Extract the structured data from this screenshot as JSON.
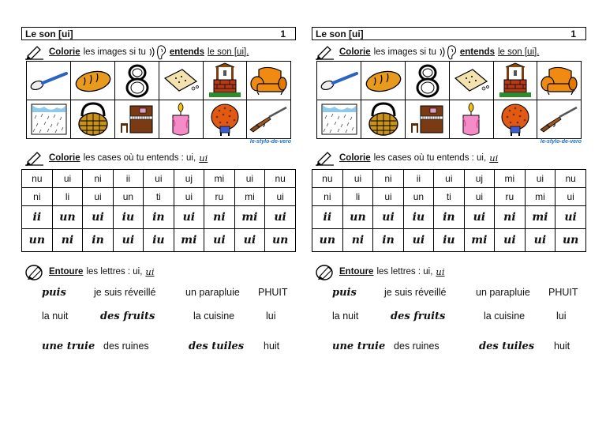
{
  "sheet": {
    "title": "Le son [ui]",
    "page_number": "1",
    "instruction1": {
      "verb": "Colorie",
      "mid": "les images si tu",
      "verb2": "entends",
      "end": "le son [ui]."
    },
    "pictures": [
      {
        "name": "spoon-icon",
        "label": "cuillère"
      },
      {
        "name": "bread-icon",
        "label": "pain"
      },
      {
        "name": "eight-icon",
        "label": "huit"
      },
      {
        "name": "biscuit-icon",
        "label": "biscuit"
      },
      {
        "name": "well-icon",
        "label": "puits"
      },
      {
        "name": "armchair-icon",
        "label": "fauteuil"
      },
      {
        "name": "rain-icon",
        "label": "pluie"
      },
      {
        "name": "basket-icon",
        "label": "panier"
      },
      {
        "name": "piano-icon",
        "label": "piano"
      },
      {
        "name": "candle-icon",
        "label": "bougie"
      },
      {
        "name": "hedgehog-icon",
        "label": "hérisson"
      },
      {
        "name": "rifle-icon",
        "label": "fusil"
      }
    ],
    "credit": "le-stylo-de-vero",
    "instruction2": {
      "verb": "Colorie",
      "text": "les cases où tu entends : ui,",
      "cursive": "ui"
    },
    "grid_rows": [
      [
        "nu",
        "ui",
        "ni",
        "ii",
        "ui",
        "uj",
        "mi",
        "ui",
        "nu"
      ],
      [
        "ni",
        "li",
        "ui",
        "un",
        "ti",
        "ui",
        "ru",
        "mi",
        "ui"
      ],
      [
        "ii",
        "un",
        "ui",
        "iu",
        "in",
        "ui",
        "ni",
        "mi",
        "ui"
      ],
      [
        "un",
        "ni",
        "in",
        "ui",
        "iu",
        "mi",
        "ui",
        "ui",
        "un"
      ]
    ],
    "instruction3": {
      "verb": "Entoure",
      "text": "les lettres : ui,",
      "cursive": "ui"
    },
    "words": [
      {
        "text": "puis",
        "cursive": true
      },
      {
        "text": "je suis réveillé",
        "cursive": false
      },
      {
        "text": "un parapluie",
        "cursive": false
      },
      {
        "text": "PHUIT",
        "cursive": false
      },
      {
        "text": "la nuit",
        "cursive": false
      },
      {
        "text": "des fruits",
        "cursive": true
      },
      {
        "text": "la cuisine",
        "cursive": false
      },
      {
        "text": "lui",
        "cursive": false
      },
      {
        "text": "une truie",
        "cursive": true
      },
      {
        "text": "des ruines",
        "cursive": false
      },
      {
        "text": "des tuiles",
        "cursive": true
      },
      {
        "text": "huit",
        "cursive": false
      }
    ]
  }
}
